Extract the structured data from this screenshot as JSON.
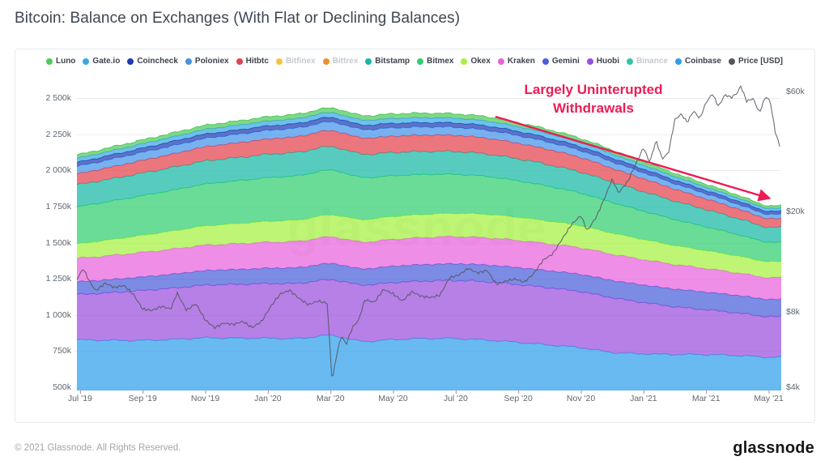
{
  "page": {
    "title": "Bitcoin: Balance on Exchanges (With Flat or Declining Balances)"
  },
  "watermark": "glassnode",
  "annotation": {
    "line1": "Largely Uninterupted",
    "line2": "Withdrawals",
    "color": "#ED1C55"
  },
  "footer": {
    "copyright": "© 2021 Glassnode. All Rights Reserved.",
    "brand": "glassnode"
  },
  "legend": [
    {
      "label": "Luno",
      "color": "#4FC95C",
      "disabled": false
    },
    {
      "label": "Gate.io",
      "color": "#38A7E4",
      "disabled": false
    },
    {
      "label": "Coincheck",
      "color": "#1F3BB3",
      "disabled": false
    },
    {
      "label": "Poloniex",
      "color": "#4493EA",
      "disabled": false
    },
    {
      "label": "Hitbtc",
      "color": "#E5414B",
      "disabled": false
    },
    {
      "label": "Bitfinex",
      "color": "#F5C242",
      "disabled": true
    },
    {
      "label": "Bittrex",
      "color": "#EE9028",
      "disabled": true
    },
    {
      "label": "Bitstamp",
      "color": "#16B8A5",
      "disabled": false
    },
    {
      "label": "Bitmex",
      "color": "#30CE70",
      "disabled": false
    },
    {
      "label": "Okex",
      "color": "#A5F13F",
      "disabled": false
    },
    {
      "label": "Kraken",
      "color": "#E763DD",
      "disabled": false
    },
    {
      "label": "Gemini",
      "color": "#4A5FD9",
      "disabled": false
    },
    {
      "label": "Huobi",
      "color": "#9A4FDE",
      "disabled": false
    },
    {
      "label": "Binance",
      "color": "#35C1AC",
      "disabled": true
    },
    {
      "label": "Coinbase",
      "color": "#2E9FEC",
      "disabled": false
    },
    {
      "label": "Price [USD]",
      "color": "#53555C",
      "disabled": false
    }
  ],
  "chart_data": {
    "type": "area",
    "stacking": "normal",
    "title": "Bitcoin: Balance on Exchanges (With Flat or Declining Balances)",
    "x_unit": "month index, 0 = Jun 2019, monthly samples Jun '19 - May '21",
    "x_domain": [
      0.9,
      23.4
    ],
    "x_ticks": [
      {
        "t": 1,
        "label": "Jul '19"
      },
      {
        "t": 3,
        "label": "Sep '19"
      },
      {
        "t": 5,
        "label": "Nov '19"
      },
      {
        "t": 7,
        "label": "Jan '20"
      },
      {
        "t": 9,
        "label": "Mar '20"
      },
      {
        "t": 11,
        "label": "May '20"
      },
      {
        "t": 13,
        "label": "Jul '20"
      },
      {
        "t": 15,
        "label": "Sep '20"
      },
      {
        "t": 17,
        "label": "Nov '20"
      },
      {
        "t": 19,
        "label": "Jan '21"
      },
      {
        "t": 21,
        "label": "Mar '21"
      },
      {
        "t": 23,
        "label": "May '21"
      }
    ],
    "y_left": {
      "unit": "BTC (thousands)",
      "grid": true,
      "ticks": [
        {
          "v": 500,
          "label": "500k"
        },
        {
          "v": 750,
          "label": "750k"
        },
        {
          "v": 1000,
          "label": "1 000k"
        },
        {
          "v": 1250,
          "label": "1 250k"
        },
        {
          "v": 1500,
          "label": "1 500k"
        },
        {
          "v": 1750,
          "label": "1 750k"
        },
        {
          "v": 2000,
          "label": "2 000k"
        },
        {
          "v": 2250,
          "label": "2 250k"
        },
        {
          "v": 2500,
          "label": "2 500k"
        }
      ]
    },
    "y_right": {
      "unit": "USD (thousands)",
      "scale": "log",
      "ticks": [
        {
          "v": 4,
          "label": "$4k"
        },
        {
          "v": 8,
          "label": "$8k"
        },
        {
          "v": 20,
          "label": "$20k"
        },
        {
          "v": 60,
          "label": "$60k"
        }
      ]
    },
    "series": [
      {
        "name": "Coinbase",
        "color": "#2E9FEC",
        "values": [
          828,
          827,
          824,
          824,
          831,
          841,
          839,
          839,
          837,
          858,
          818,
          830,
          836,
          836,
          826,
          810,
          792,
          773,
          741,
          731,
          727,
          726,
          719,
          708
        ]
      },
      {
        "name": "Huobi",
        "color": "#9A4FDE",
        "values": [
          300,
          315,
          330,
          345,
          355,
          365,
          372,
          378,
          382,
          385,
          390,
          394,
          398,
          402,
          403,
          400,
          395,
          388,
          378,
          355,
          330,
          310,
          295,
          280
        ]
      },
      {
        "name": "Gemini",
        "color": "#4A5FD9",
        "values": [
          85,
          88,
          91,
          94,
          97,
          100,
          103,
          106,
          109,
          112,
          112,
          113,
          114,
          115,
          116,
          117,
          118,
          119,
          120,
          121,
          122,
          122,
          121,
          120
        ]
      },
      {
        "name": "Kraken",
        "color": "#E763DD",
        "values": [
          160,
          163,
          166,
          170,
          173,
          176,
          178,
          180,
          182,
          184,
          185,
          186,
          187,
          188,
          188,
          188,
          186,
          184,
          181,
          176,
          170,
          163,
          156,
          150
        ]
      },
      {
        "name": "Okex",
        "color": "#A5F13F",
        "values": [
          90,
          100,
          110,
          118,
          126,
          133,
          139,
          144,
          148,
          152,
          155,
          158,
          160,
          161,
          162,
          160,
          157,
          152,
          146,
          139,
          131,
          124,
          117,
          110
        ]
      },
      {
        "name": "Bitmex",
        "color": "#30CE70",
        "values": [
          250,
          258,
          266,
          274,
          282,
          290,
          296,
          302,
          306,
          310,
          292,
          282,
          276,
          270,
          262,
          252,
          240,
          226,
          212,
          196,
          180,
          164,
          149,
          135
        ]
      },
      {
        "name": "Bitstamp",
        "color": "#16B8A5",
        "values": [
          150,
          152,
          154,
          156,
          158,
          159,
          160,
          161,
          162,
          162,
          161,
          160,
          159,
          157,
          155,
          152,
          149,
          145,
          140,
          134,
          127,
          119,
          111,
          103
        ]
      },
      {
        "name": "Hitbtc",
        "color": "#E5414B",
        "values": [
          70,
          76,
          82,
          88,
          93,
          98,
          102,
          106,
          109,
          111,
          112,
          113,
          113,
          112,
          110,
          108,
          105,
          101,
          96,
          90,
          83,
          75,
          67,
          60
        ]
      },
      {
        "name": "Poloniex",
        "color": "#4493EA",
        "values": [
          50,
          52,
          54,
          56,
          57,
          58,
          59,
          60,
          60,
          60,
          59,
          58,
          57,
          56,
          55,
          53,
          51,
          48,
          45,
          42,
          38,
          35,
          32,
          30
        ]
      },
      {
        "name": "Coincheck",
        "color": "#1F3BB3",
        "values": [
          28,
          28,
          29,
          29,
          30,
          30,
          30,
          31,
          31,
          31,
          31,
          31,
          30,
          30,
          30,
          29,
          28,
          27,
          26,
          25,
          24,
          23,
          22,
          21
        ]
      },
      {
        "name": "Gate.io",
        "color": "#38A7E4",
        "values": [
          27,
          28,
          29,
          30,
          31,
          32,
          33,
          33,
          34,
          34,
          34,
          34,
          34,
          33,
          33,
          32,
          31,
          30,
          29,
          27,
          25,
          23,
          21,
          20
        ]
      },
      {
        "name": "Luno",
        "color": "#4FC95C",
        "values": [
          22,
          23,
          25,
          26,
          27,
          28,
          29,
          30,
          30,
          31,
          31,
          31,
          31,
          30,
          30,
          29,
          28,
          27,
          26,
          24,
          23,
          21,
          20,
          18
        ]
      }
    ],
    "price": {
      "name": "Price [USD]",
      "color": "#53555C",
      "unit": "USD thousands",
      "axis": "right",
      "points": [
        [
          0.9,
          10.8
        ],
        [
          1.1,
          11.9
        ],
        [
          1.3,
          10.6
        ],
        [
          1.5,
          9.7
        ],
        [
          1.8,
          10.4
        ],
        [
          2.1,
          10.0
        ],
        [
          2.4,
          10.2
        ],
        [
          2.7,
          9.4
        ],
        [
          3.0,
          8.2
        ],
        [
          3.3,
          8.1
        ],
        [
          3.6,
          8.4
        ],
        [
          3.9,
          8.2
        ],
        [
          4.1,
          9.5
        ],
        [
          4.4,
          8.1
        ],
        [
          4.7,
          8.6
        ],
        [
          5.0,
          7.4
        ],
        [
          5.3,
          6.9
        ],
        [
          5.6,
          7.2
        ],
        [
          5.9,
          7.1
        ],
        [
          6.2,
          7.3
        ],
        [
          6.5,
          6.9
        ],
        [
          6.8,
          7.3
        ],
        [
          7.1,
          8.4
        ],
        [
          7.4,
          9.4
        ],
        [
          7.7,
          9.7
        ],
        [
          8.0,
          9.0
        ],
        [
          8.3,
          8.5
        ],
        [
          8.6,
          8.8
        ],
        [
          8.9,
          8.6
        ],
        [
          9.05,
          4.2
        ],
        [
          9.2,
          5.4
        ],
        [
          9.35,
          6.4
        ],
        [
          9.5,
          5.9
        ],
        [
          9.7,
          6.9
        ],
        [
          9.9,
          7.4
        ],
        [
          10.1,
          8.9
        ],
        [
          10.4,
          8.7
        ],
        [
          10.7,
          9.8
        ],
        [
          11.0,
          9.4
        ],
        [
          11.3,
          8.8
        ],
        [
          11.6,
          9.6
        ],
        [
          11.9,
          9.2
        ],
        [
          12.2,
          9.1
        ],
        [
          12.5,
          9.3
        ],
        [
          12.8,
          10.9
        ],
        [
          13.1,
          11.2
        ],
        [
          13.4,
          11.9
        ],
        [
          13.7,
          11.4
        ],
        [
          14.0,
          11.7
        ],
        [
          14.3,
          10.3
        ],
        [
          14.6,
          10.6
        ],
        [
          14.9,
          10.8
        ],
        [
          15.2,
          10.5
        ],
        [
          15.5,
          11.4
        ],
        [
          15.8,
          12.9
        ],
        [
          16.1,
          13.6
        ],
        [
          16.4,
          15.6
        ],
        [
          16.7,
          17.8
        ],
        [
          17.0,
          19.4
        ],
        [
          17.2,
          16.8
        ],
        [
          17.5,
          19.2
        ],
        [
          17.8,
          23.4
        ],
        [
          18.0,
          27.1
        ],
        [
          18.2,
          23.8
        ],
        [
          18.5,
          26.5
        ],
        [
          18.8,
          32.0
        ],
        [
          19.0,
          36.0
        ],
        [
          19.2,
          31.5
        ],
        [
          19.4,
          38.5
        ],
        [
          19.6,
          32.5
        ],
        [
          19.8,
          34.5
        ],
        [
          20.0,
          46.5
        ],
        [
          20.2,
          49.0
        ],
        [
          20.4,
          45.5
        ],
        [
          20.6,
          50.5
        ],
        [
          20.8,
          47.0
        ],
        [
          21.0,
          54.5
        ],
        [
          21.2,
          59.0
        ],
        [
          21.4,
          52.5
        ],
        [
          21.6,
          58.5
        ],
        [
          21.8,
          57.0
        ],
        [
          22.0,
          59.5
        ],
        [
          22.1,
          63.5
        ],
        [
          22.3,
          55.0
        ],
        [
          22.5,
          56.5
        ],
        [
          22.7,
          49.5
        ],
        [
          22.9,
          57.5
        ],
        [
          23.05,
          55.0
        ],
        [
          23.2,
          42.0
        ],
        [
          23.35,
          36.5
        ]
      ]
    }
  }
}
